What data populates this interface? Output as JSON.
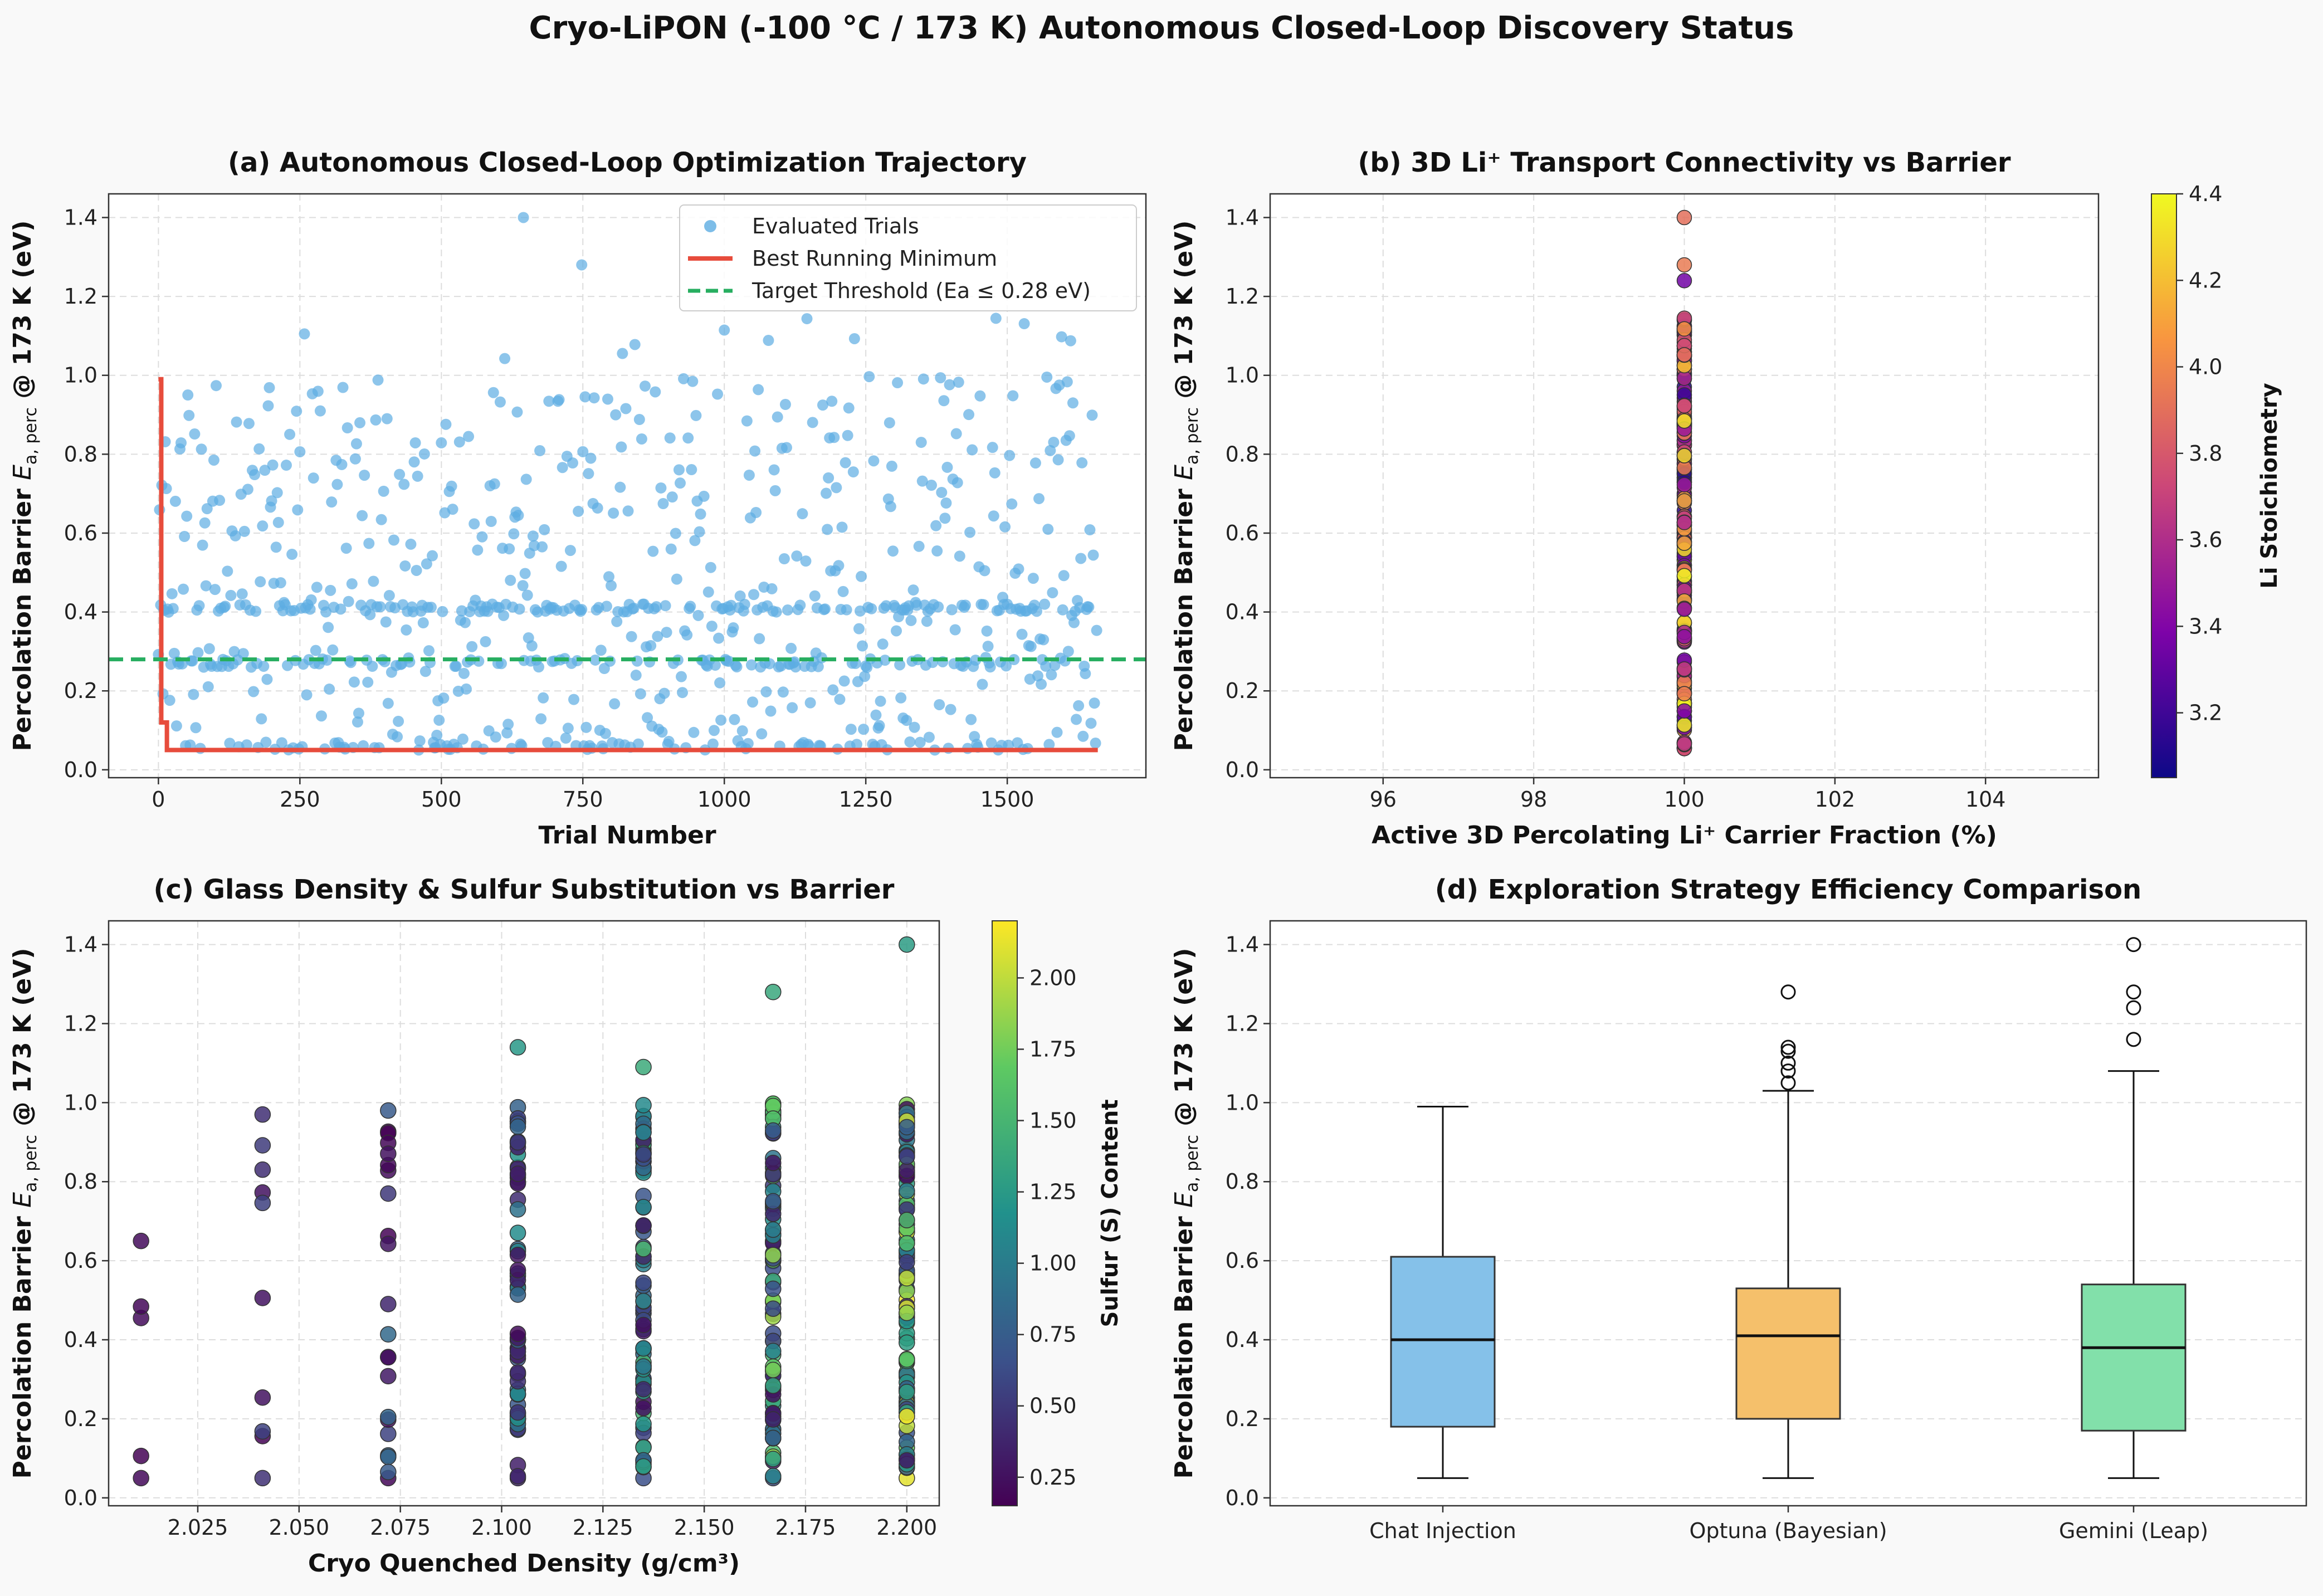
{
  "suptitle": "Cryo-LiPON (-100 °C / 173 K) Autonomous Closed-Loop Discovery Status",
  "colors": {
    "trials": "#5dade2",
    "best": "#e74c3c",
    "target": "#27ae60",
    "grid": "#dddddd",
    "box_chat": "#85c1e9",
    "box_optuna": "#f5c06b",
    "box_gemini": "#82e0aa"
  },
  "chart_data": [
    {
      "id": "a",
      "type": "scatter",
      "title": "(a) Autonomous Closed-Loop Optimization Trajectory",
      "xlabel": "Trial Number",
      "ylabel": "Percolation Barrier E_a,perc @ 173 K (eV)",
      "xlim": [
        -88,
        1745
      ],
      "ylim": [
        -0.02,
        1.46
      ],
      "xticks": [
        0,
        250,
        500,
        750,
        1000,
        1250,
        1500
      ],
      "yticks": [
        0.0,
        0.2,
        0.4,
        0.6,
        0.8,
        1.0,
        1.2,
        1.4
      ],
      "grid": true,
      "legend": "upper right",
      "n_trials": 1660,
      "series": [
        {
          "name": "Evaluated Trials",
          "kind": "points",
          "note_levels_eV": [
            0.05,
            0.27,
            0.41,
            1.4
          ]
        },
        {
          "name": "Best Running Minimum",
          "kind": "step",
          "x": [
            0,
            5,
            15,
            1660
          ],
          "y": [
            0.99,
            0.12,
            0.05,
            0.05
          ]
        },
        {
          "name": "Target Threshold (Ea ≤ 0.28 eV)",
          "kind": "hline",
          "y": 0.28
        }
      ]
    },
    {
      "id": "b",
      "type": "scatter",
      "title": "(b) 3D Li⁺ Transport Connectivity vs Barrier",
      "xlabel": "Active 3D Percolating Li⁺ Carrier Fraction (%)",
      "ylabel": "Percolation Barrier E_a,perc @ 173 K (eV)",
      "xlim": [
        94.5,
        105.5
      ],
      "ylim": [
        -0.02,
        1.46
      ],
      "xticks": [
        96,
        98,
        100,
        102,
        104
      ],
      "yticks": [
        0.0,
        0.2,
        0.4,
        0.6,
        0.8,
        1.0,
        1.2,
        1.4
      ],
      "grid": true,
      "x_value_all_points": 100,
      "colorbar": {
        "label": "Li Stoichiometry",
        "cmap": "plasma",
        "range": [
          3.05,
          4.4
        ],
        "ticks": [
          3.2,
          3.4,
          3.6,
          3.8,
          4.0,
          4.2,
          4.4
        ]
      }
    },
    {
      "id": "c",
      "type": "scatter",
      "title": "(c) Glass Density & Sulfur Substitution vs Barrier",
      "xlabel": "Cryo Quenched Density (g/cm³)",
      "ylabel": "Percolation Barrier E_a,perc @ 173 K (eV)",
      "xlim": [
        2.003,
        2.208
      ],
      "ylim": [
        -0.02,
        1.46
      ],
      "xticks": [
        2.025,
        2.05,
        2.075,
        2.1,
        2.125,
        2.15,
        2.175,
        2.2
      ],
      "yticks": [
        0.0,
        0.2,
        0.4,
        0.6,
        0.8,
        1.0,
        1.2,
        1.4
      ],
      "grid": true,
      "density_columns": [
        2.011,
        2.041,
        2.072,
        2.104,
        2.135,
        2.167,
        2.2
      ],
      "column_max_eV": [
        0.65,
        0.97,
        0.98,
        1.14,
        1.09,
        1.28,
        1.4
      ],
      "colorbar": {
        "label": "Sulfur (S) Content",
        "cmap": "viridis",
        "range": [
          0.15,
          2.2
        ],
        "ticks": [
          0.25,
          0.5,
          0.75,
          1.0,
          1.25,
          1.5,
          1.75,
          2.0
        ]
      }
    },
    {
      "id": "d",
      "type": "box",
      "title": "(d) Exploration Strategy Efficiency Comparison",
      "xlabel": "",
      "ylabel": "Percolation Barrier E_a,perc @ 173 K (eV)",
      "ylim": [
        -0.02,
        1.46
      ],
      "yticks": [
        0.0,
        0.2,
        0.4,
        0.6,
        0.8,
        1.0,
        1.2,
        1.4
      ],
      "grid": true,
      "categories": [
        "Chat Injection",
        "Optuna (Bayesian)",
        "Gemini (Leap)"
      ],
      "boxes": [
        {
          "whislo": 0.05,
          "q1": 0.18,
          "med": 0.4,
          "q3": 0.61,
          "whishi": 0.99,
          "fliers": []
        },
        {
          "whislo": 0.05,
          "q1": 0.2,
          "med": 0.41,
          "q3": 0.53,
          "whishi": 1.03,
          "fliers": [
            1.05,
            1.08,
            1.1,
            1.13,
            1.14,
            1.28
          ]
        },
        {
          "whislo": 0.05,
          "q1": 0.17,
          "med": 0.38,
          "q3": 0.54,
          "whishi": 1.08,
          "fliers": [
            1.16,
            1.24,
            1.28,
            1.4
          ]
        }
      ]
    }
  ]
}
